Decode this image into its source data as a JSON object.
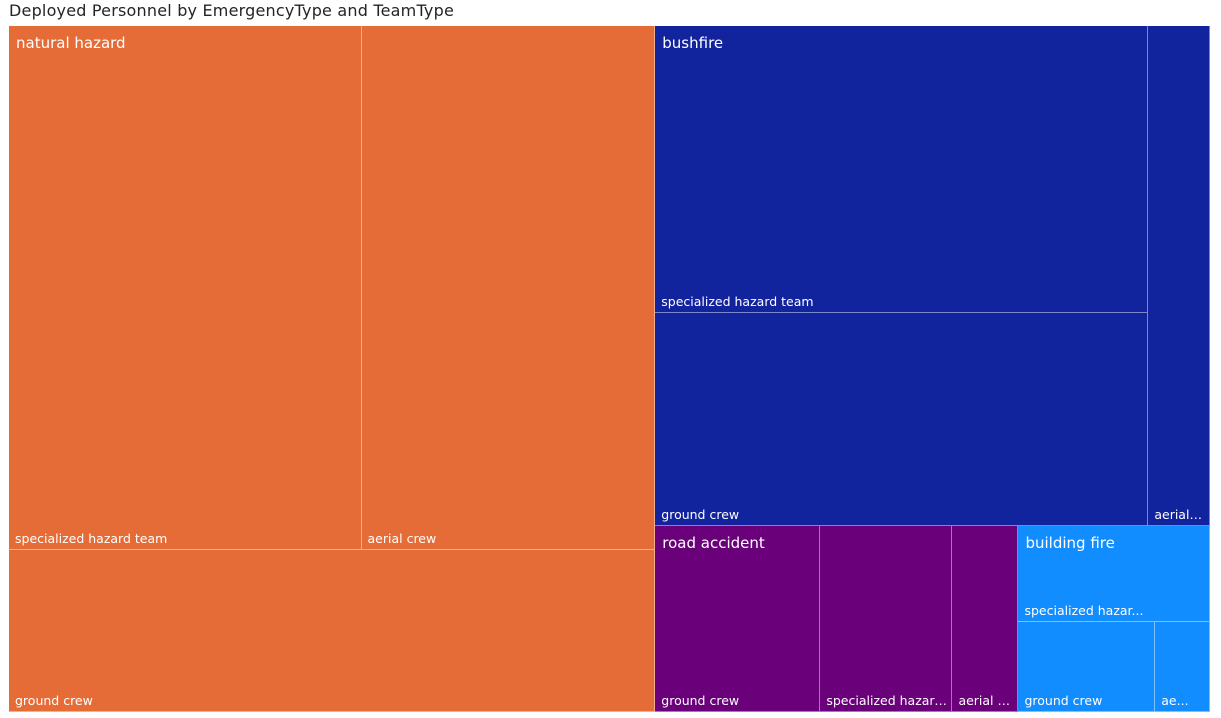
{
  "chart_data": {
    "type": "treemap",
    "title": "Deployed Personnel by EmergencyType and TeamType",
    "colors": {
      "natural hazard": "#E66C37",
      "bushfire": "#12239E",
      "road accident": "#6B007B",
      "building fire": "#118DFF"
    },
    "groups": [
      {
        "name": "natural hazard",
        "children": [
          {
            "name": "specialized hazard team",
            "label": "specialized hazard team",
            "value": 30
          },
          {
            "name": "aerial crew",
            "label": "aerial crew",
            "value": 25
          },
          {
            "name": "ground crew",
            "label": "ground crew",
            "value": 17
          }
        ]
      },
      {
        "name": "bushfire",
        "children": [
          {
            "name": "specialized hazard team",
            "label": "specialized hazard team",
            "value": 23
          },
          {
            "name": "ground crew",
            "label": "ground crew",
            "value": 17
          },
          {
            "name": "aerial crew",
            "label": "aerial crew",
            "value": 5
          }
        ]
      },
      {
        "name": "road accident",
        "children": [
          {
            "name": "ground crew",
            "label": "ground crew",
            "value": 5
          },
          {
            "name": "specialized hazard team",
            "label": "specialized hazard team",
            "value": 4
          },
          {
            "name": "aerial crew",
            "label": "aerial c...",
            "value": 2
          }
        ]
      },
      {
        "name": "building fire",
        "children": [
          {
            "name": "specialized hazard team",
            "label": "specialized hazar...",
            "value": 3
          },
          {
            "name": "ground crew",
            "label": "ground crew",
            "value": 2
          },
          {
            "name": "aerial crew",
            "label": "ae...",
            "value": 0.8
          }
        ]
      }
    ]
  }
}
